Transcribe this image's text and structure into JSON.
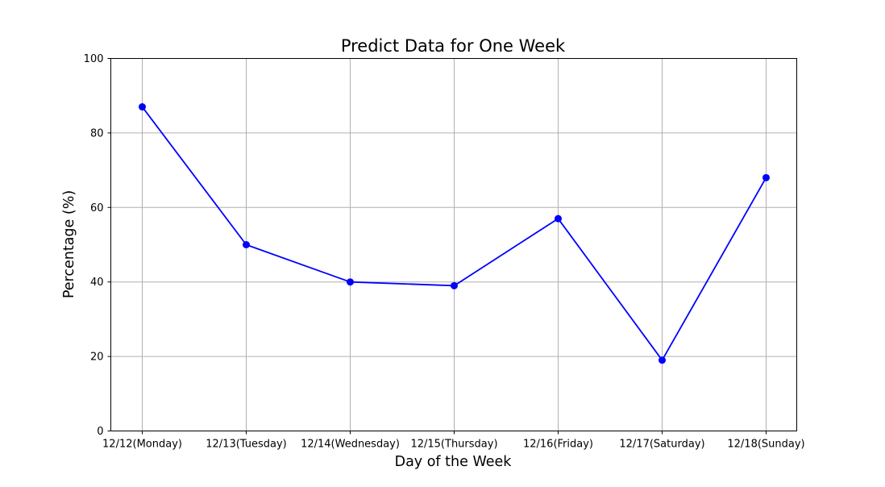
{
  "chart_data": {
    "type": "line",
    "title": "Predict Data for One Week",
    "xlabel": "Day of the Week",
    "ylabel": "Percentage (%)",
    "categories": [
      "12/12(Monday)",
      "12/13(Tuesday)",
      "12/14(Wednesday)",
      "12/15(Thursday)",
      "12/16(Friday)",
      "12/17(Saturday)",
      "12/18(Sunday)"
    ],
    "values": [
      87,
      50,
      40,
      39,
      57,
      19,
      68
    ],
    "ylim": [
      0,
      100
    ],
    "yticks": [
      0,
      20,
      40,
      60,
      80,
      100
    ],
    "grid": true,
    "line_color": "#0000ff",
    "marker": "circle",
    "legend": "none"
  }
}
